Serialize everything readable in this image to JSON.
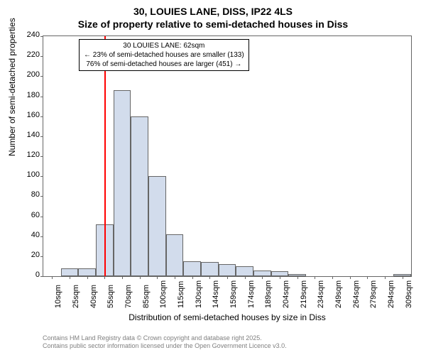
{
  "chart": {
    "type": "histogram",
    "title_line1": "30, LOUIES LANE, DISS, IP22 4LS",
    "title_line2": "Size of property relative to semi-detached houses in Diss",
    "title_fontsize": 14,
    "ylabel": "Number of semi-detached properties",
    "xlabel": "Distribution of semi-detached houses by size in Diss",
    "axis_label_fontsize": 12,
    "tick_fontsize": 11,
    "ylim": [
      0,
      240
    ],
    "ytick_step": 20,
    "yticks": [
      0,
      20,
      40,
      60,
      80,
      100,
      120,
      140,
      160,
      180,
      200,
      220,
      240
    ],
    "xtick_labels": [
      "10sqm",
      "25sqm",
      "40sqm",
      "55sqm",
      "70sqm",
      "85sqm",
      "100sqm",
      "115sqm",
      "130sqm",
      "144sqm",
      "159sqm",
      "174sqm",
      "189sqm",
      "204sqm",
      "219sqm",
      "234sqm",
      "249sqm",
      "264sqm",
      "279sqm",
      "294sqm",
      "309sqm"
    ],
    "bar_values": [
      0,
      8,
      8,
      52,
      186,
      160,
      100,
      42,
      15,
      14,
      12,
      10,
      6,
      5,
      2,
      0,
      0,
      0,
      0,
      0,
      2
    ],
    "bar_fill_color": "#d2dcec",
    "bar_border_color": "#666666",
    "background_color": "#ffffff",
    "marker_line_color": "#ff0000",
    "marker_line_position_index": 3.5,
    "annotation": {
      "line1": "30 LOUIES LANE: 62sqm",
      "line2": "← 23% of semi-detached houses are smaller (133)",
      "line3": "76% of semi-detached houses are larger (451) →",
      "fontsize": 10,
      "border_color": "#000000",
      "background_color": "#ffffff"
    },
    "footer_line1": "Contains HM Land Registry data © Crown copyright and database right 2025.",
    "footer_line2": "Contains public sector information licensed under the Open Government Licence v3.0.",
    "footer_fontsize": 9,
    "footer_color": "#808080"
  }
}
